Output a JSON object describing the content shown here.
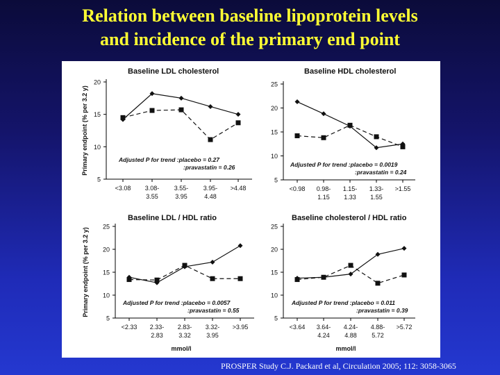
{
  "slide": {
    "title_line1": "Relation between baseline lipoprotein levels",
    "title_line2": "and incidence of the primary end point",
    "citation": "PROSPER Study C.J. Packard et al, Circulation 2005; 112: 3058-3065"
  },
  "chart_data": [
    {
      "type": "line",
      "title": "Baseline LDL cholesterol",
      "ylabel": "Primary endpoint (% per 3.2 y)",
      "xlabel": "",
      "ylim": [
        5,
        20
      ],
      "yticks": [
        5,
        10,
        15,
        20
      ],
      "categories": [
        [
          "<3.08"
        ],
        [
          "3.08-",
          "3.55"
        ],
        [
          "3.55-",
          "3.95"
        ],
        [
          "3.95-",
          "4.48"
        ],
        [
          ">4.48"
        ]
      ],
      "series": [
        {
          "marker": "diamond",
          "dash": false,
          "values": [
            14.2,
            18.2,
            17.5,
            16.2,
            15.0
          ]
        },
        {
          "marker": "square",
          "dash": true,
          "values": [
            14.5,
            15.6,
            15.7,
            11.1,
            13.7
          ]
        }
      ],
      "annotation": [
        "Adjusted P for trend :placebo = 0.27",
        ":pravastatin = 0.26"
      ]
    },
    {
      "type": "line",
      "title": "Baseline HDL cholesterol",
      "ylabel": "",
      "xlabel": "",
      "ylim": [
        5,
        25
      ],
      "yticks": [
        5,
        10,
        15,
        20,
        25
      ],
      "categories": [
        [
          "<0.98"
        ],
        [
          "0.98-",
          "1.15"
        ],
        [
          "1.15-",
          "1.33"
        ],
        [
          "1.33-",
          "1.55"
        ],
        [
          ">1.55"
        ]
      ],
      "series": [
        {
          "marker": "diamond",
          "dash": false,
          "values": [
            21.3,
            18.8,
            16.2,
            11.7,
            12.5
          ]
        },
        {
          "marker": "square",
          "dash": true,
          "values": [
            14.2,
            13.8,
            16.4,
            14.0,
            11.9
          ]
        }
      ],
      "annotation": [
        "Adjusted P for trend :placebo = 0.0019",
        ":pravastatin = 0.24"
      ]
    },
    {
      "type": "line",
      "title": "Baseline LDL / HDL ratio",
      "ylabel": "Primary endpoint (% per  3.2 y)",
      "xlabel": "mmol/l",
      "ylim": [
        5,
        25
      ],
      "yticks": [
        5,
        10,
        15,
        20,
        25
      ],
      "categories": [
        [
          "<2.33"
        ],
        [
          "2.33-",
          "2.83"
        ],
        [
          "2.83-",
          "3.32"
        ],
        [
          "3.32-",
          "3.95"
        ],
        [
          ">3.95"
        ]
      ],
      "series": [
        {
          "marker": "diamond",
          "dash": false,
          "values": [
            13.9,
            12.7,
            16.2,
            17.2,
            20.8
          ]
        },
        {
          "marker": "square",
          "dash": true,
          "values": [
            13.4,
            13.3,
            16.5,
            13.6,
            13.6
          ]
        }
      ],
      "annotation": [
        "Adjusted P for trend :placebo = 0.0057",
        ":pravastatin = 0.55"
      ]
    },
    {
      "type": "line",
      "title": "Baseline cholesterol / HDL ratio",
      "ylabel": "",
      "xlabel": "mmol/l",
      "ylim": [
        5,
        25
      ],
      "yticks": [
        5,
        10,
        15,
        20,
        25
      ],
      "categories": [
        [
          "<3.64"
        ],
        [
          "3.64-",
          "4.24"
        ],
        [
          "4.24-",
          "4.88"
        ],
        [
          "4.88-",
          "5.72"
        ],
        [
          ">5.72"
        ]
      ],
      "series": [
        {
          "marker": "diamond",
          "dash": false,
          "values": [
            13.7,
            13.9,
            14.6,
            18.9,
            20.2
          ]
        },
        {
          "marker": "square",
          "dash": true,
          "values": [
            13.4,
            13.9,
            16.5,
            12.6,
            14.4
          ]
        }
      ],
      "annotation": [
        "Adjusted P for trend :placebo = 0.011",
        ":pravastatin = 0.39"
      ]
    }
  ]
}
